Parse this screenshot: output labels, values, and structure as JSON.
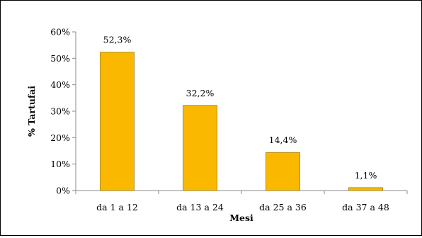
{
  "chart_data": {
    "type": "bar",
    "categories": [
      "da 1 a 12",
      "da 13 a 24",
      "da 25 a 36",
      "da 37 a 48"
    ],
    "values": [
      52.3,
      32.2,
      14.4,
      1.1
    ],
    "data_labels": [
      "52,3%",
      "32,2%",
      "14,4%",
      "1,1%"
    ],
    "xlabel": "Mesi",
    "ylabel": "% Tartufai",
    "ylim": [
      0,
      60
    ],
    "yticks": [
      0,
      10,
      20,
      30,
      40,
      50,
      60
    ],
    "ytick_labels": [
      "0%",
      "10%",
      "20%",
      "30%",
      "40%",
      "50%",
      "60%"
    ],
    "grid": false,
    "legend": "none",
    "bar_color": "#FAB900",
    "bar_edge_color": "#9C7A10"
  }
}
